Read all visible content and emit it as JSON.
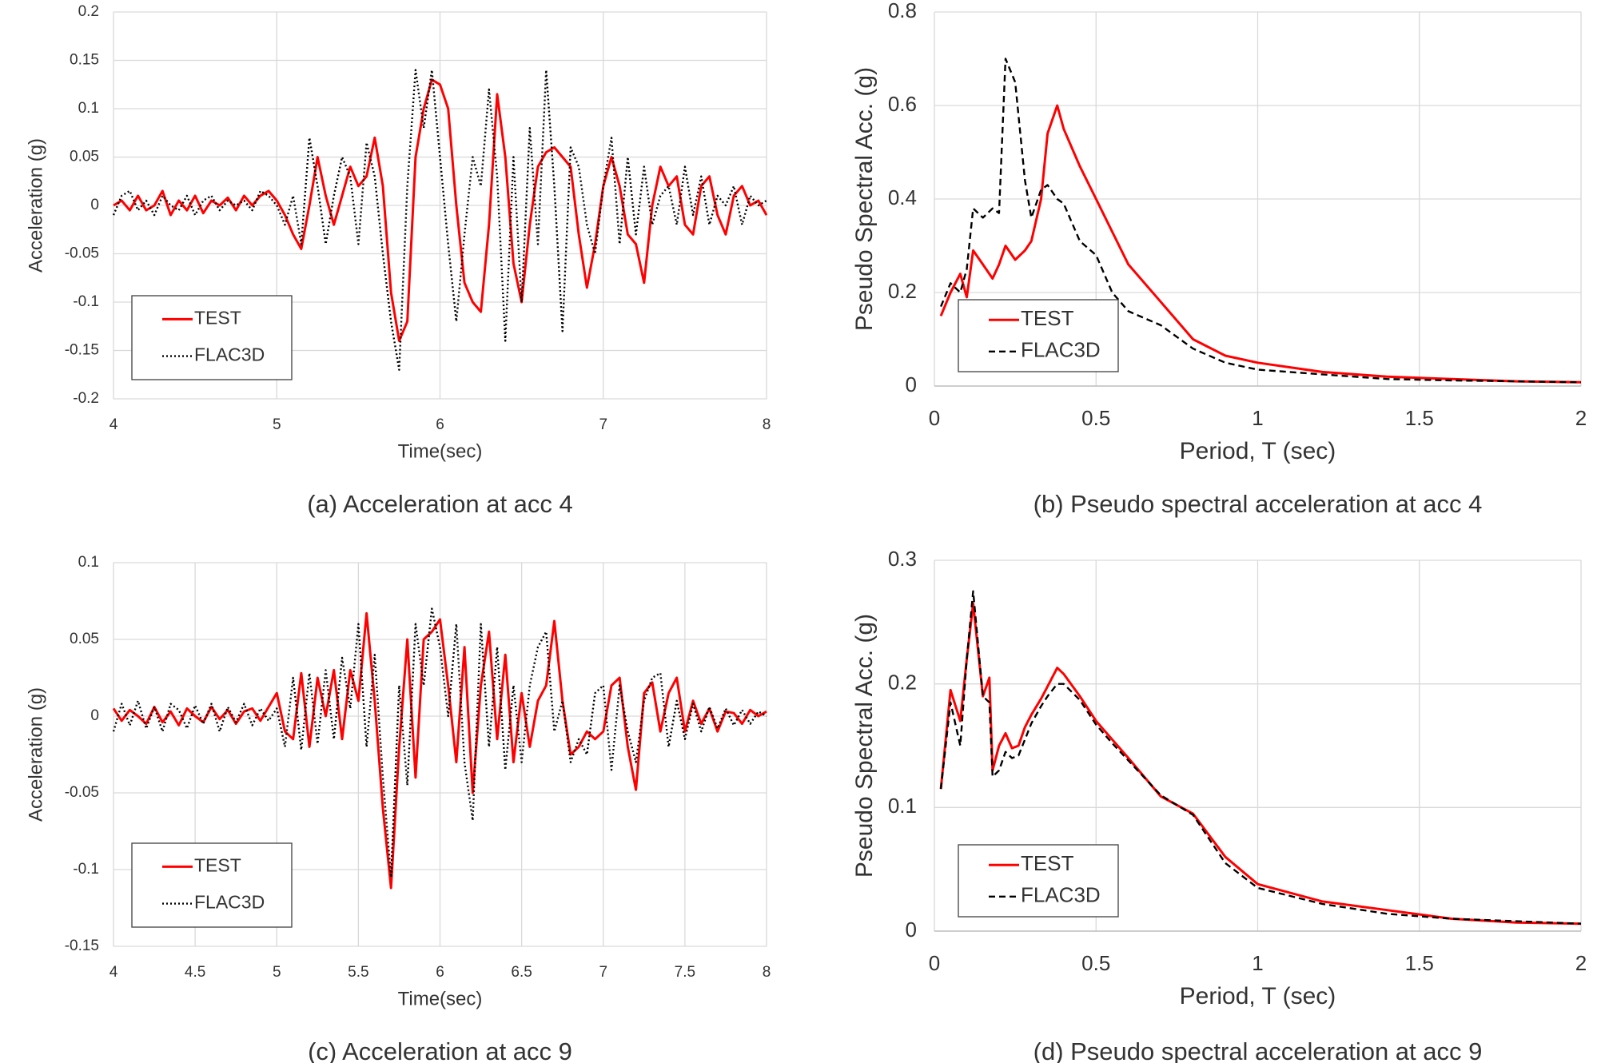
{
  "chart_data": [
    {
      "type": "line",
      "caption": "(a) Acceleration at acc 4",
      "x_label": "Time(sec)",
      "y_label": "Acceleration (g)",
      "xlim": [
        4,
        8
      ],
      "ylim": [
        -0.2,
        0.2
      ],
      "xticks": [
        4,
        5,
        6,
        7,
        8
      ],
      "yticks": [
        -0.2,
        -0.15,
        -0.1,
        -0.05,
        0,
        0.05,
        0.1,
        0.15,
        0.2
      ],
      "grid": true,
      "legend": "lower left",
      "x": [
        4,
        4.05,
        4.1,
        4.15,
        4.2,
        4.25,
        4.3,
        4.35,
        4.4,
        4.45,
        4.5,
        4.55,
        4.6,
        4.65,
        4.7,
        4.75,
        4.8,
        4.85,
        4.9,
        4.95,
        5,
        5.05,
        5.1,
        5.15,
        5.2,
        5.25,
        5.3,
        5.35,
        5.4,
        5.45,
        5.5,
        5.55,
        5.6,
        5.65,
        5.7,
        5.75,
        5.8,
        5.85,
        5.9,
        5.95,
        6,
        6.05,
        6.1,
        6.15,
        6.2,
        6.25,
        6.3,
        6.35,
        6.4,
        6.45,
        6.5,
        6.55,
        6.6,
        6.65,
        6.7,
        6.75,
        6.8,
        6.85,
        6.9,
        6.95,
        7,
        7.05,
        7.1,
        7.15,
        7.2,
        7.25,
        7.3,
        7.35,
        7.4,
        7.45,
        7.5,
        7.55,
        7.6,
        7.65,
        7.7,
        7.75,
        7.8,
        7.85,
        7.9,
        7.95,
        8
      ],
      "series": [
        {
          "name": "TEST",
          "color": "#ff0000",
          "line_style": "solid",
          "values": [
            0,
            0.005,
            -0.005,
            0.01,
            -0.005,
            0,
            0.015,
            -0.01,
            0.005,
            -0.005,
            0.01,
            -0.008,
            0.005,
            0,
            0.008,
            -0.005,
            0.01,
            0,
            0.01,
            0.015,
            0.005,
            -0.01,
            -0.03,
            -0.045,
            0,
            0.05,
            0.01,
            -0.02,
            0.01,
            0.04,
            0.02,
            0.03,
            0.07,
            0.02,
            -0.09,
            -0.14,
            -0.12,
            0.05,
            0.1,
            0.13,
            0.125,
            0.1,
            0,
            -0.08,
            -0.1,
            -0.11,
            -0.02,
            0.115,
            0.05,
            -0.06,
            -0.1,
            -0.02,
            0.04,
            0.055,
            0.06,
            0.05,
            0.04,
            -0.03,
            -0.085,
            -0.04,
            0.02,
            0.05,
            0.02,
            -0.03,
            -0.04,
            -0.08,
            0,
            0.04,
            0.02,
            0.03,
            -0.02,
            -0.03,
            0.02,
            0.03,
            -0.01,
            -0.03,
            0.01,
            0.02,
            0,
            0.005,
            -0.01
          ]
        },
        {
          "name": "FLAC3D",
          "color": "#000000",
          "line_style": "dotted",
          "values": [
            -0.01,
            0.01,
            0.015,
            -0.005,
            0.005,
            -0.01,
            0.01,
            0,
            -0.005,
            0.01,
            -0.01,
            0.005,
            0.01,
            -0.005,
            0.005,
            0,
            0.005,
            -0.005,
            0.015,
            0.01,
            0,
            -0.02,
            0.01,
            -0.04,
            0.07,
            0.02,
            -0.04,
            0.01,
            0.05,
            0.03,
            -0.04,
            0.065,
            0.03,
            -0.05,
            -0.12,
            -0.17,
            0.02,
            0.14,
            0.08,
            0.14,
            0.05,
            -0.04,
            -0.12,
            -0.03,
            0.05,
            0.02,
            0.12,
            0.03,
            -0.14,
            0.05,
            -0.1,
            0.08,
            -0.04,
            0.14,
            0.02,
            -0.13,
            0.06,
            0.04,
            -0.02,
            -0.05,
            0.02,
            0.07,
            -0.04,
            0.05,
            -0.03,
            0.04,
            -0.02,
            0.01,
            0.02,
            -0.02,
            0.04,
            -0.01,
            0.03,
            -0.02,
            0.01,
            0,
            0.02,
            -0.02,
            0.01,
            0,
            0.005
          ]
        }
      ]
    },
    {
      "type": "line",
      "caption": "(b) Pseudo spectral acceleration at acc 4",
      "x_label": "Period, T (sec)",
      "y_label": "Pseudo Spectral Acc. (g)",
      "xlim": [
        0,
        2
      ],
      "ylim": [
        0,
        0.8
      ],
      "xticks": [
        0,
        0.5,
        1,
        1.5,
        2
      ],
      "yticks": [
        0,
        0.2,
        0.4,
        0.6,
        0.8
      ],
      "grid": true,
      "legend": "lower left",
      "x": [
        0.02,
        0.05,
        0.08,
        0.1,
        0.12,
        0.15,
        0.18,
        0.2,
        0.22,
        0.25,
        0.28,
        0.3,
        0.33,
        0.35,
        0.38,
        0.4,
        0.45,
        0.5,
        0.55,
        0.6,
        0.7,
        0.8,
        0.9,
        1,
        1.2,
        1.4,
        1.6,
        1.8,
        2
      ],
      "series": [
        {
          "name": "TEST",
          "color": "#ff0000",
          "line_style": "solid",
          "values": [
            0.15,
            0.2,
            0.24,
            0.19,
            0.29,
            0.26,
            0.23,
            0.26,
            0.3,
            0.27,
            0.29,
            0.31,
            0.4,
            0.54,
            0.6,
            0.55,
            0.47,
            0.4,
            0.33,
            0.26,
            0.18,
            0.1,
            0.065,
            0.05,
            0.03,
            0.02,
            0.015,
            0.01,
            0.008
          ]
        },
        {
          "name": "FLAC3D",
          "color": "#000000",
          "line_style": "dashed",
          "values": [
            0.17,
            0.22,
            0.2,
            0.25,
            0.38,
            0.36,
            0.38,
            0.37,
            0.7,
            0.65,
            0.44,
            0.36,
            0.42,
            0.43,
            0.4,
            0.39,
            0.31,
            0.28,
            0.2,
            0.16,
            0.13,
            0.08,
            0.05,
            0.035,
            0.025,
            0.015,
            0.012,
            0.01,
            0.008
          ]
        }
      ]
    },
    {
      "type": "line",
      "caption": "(c) Acceleration at acc 9",
      "x_label": "Time(sec)",
      "y_label": "Acceleration (g)",
      "xlim": [
        4,
        8
      ],
      "ylim": [
        -0.15,
        0.1
      ],
      "xticks": [
        4,
        4.5,
        5,
        5.5,
        6,
        6.5,
        7,
        7.5,
        8
      ],
      "yticks": [
        -0.15,
        -0.1,
        -0.05,
        0,
        0.05,
        0.1
      ],
      "grid": true,
      "legend": "lower left",
      "x": [
        4,
        4.05,
        4.1,
        4.15,
        4.2,
        4.25,
        4.3,
        4.35,
        4.4,
        4.45,
        4.5,
        4.55,
        4.6,
        4.65,
        4.7,
        4.75,
        4.8,
        4.85,
        4.9,
        4.95,
        5,
        5.05,
        5.1,
        5.15,
        5.2,
        5.25,
        5.3,
        5.35,
        5.4,
        5.45,
        5.5,
        5.55,
        5.6,
        5.65,
        5.7,
        5.75,
        5.8,
        5.85,
        5.9,
        5.95,
        6,
        6.05,
        6.1,
        6.15,
        6.2,
        6.25,
        6.3,
        6.35,
        6.4,
        6.45,
        6.5,
        6.55,
        6.6,
        6.65,
        6.7,
        6.75,
        6.8,
        6.85,
        6.9,
        6.95,
        7,
        7.05,
        7.1,
        7.15,
        7.2,
        7.25,
        7.3,
        7.35,
        7.4,
        7.45,
        7.5,
        7.55,
        7.6,
        7.65,
        7.7,
        7.75,
        7.8,
        7.85,
        7.9,
        7.95,
        8
      ],
      "series": [
        {
          "name": "TEST",
          "color": "#ff0000",
          "line_style": "solid",
          "values": [
            0.005,
            -0.003,
            0.004,
            0,
            -0.005,
            0.006,
            -0.004,
            0.003,
            -0.006,
            0.005,
            0,
            -0.004,
            0.006,
            -0.002,
            0.004,
            -0.005,
            0.003,
            0.005,
            -0.003,
            0.006,
            0.015,
            -0.01,
            -0.015,
            0.028,
            -0.02,
            0.025,
            0,
            0.03,
            -0.015,
            0.03,
            0.01,
            0.067,
            0.01,
            -0.06,
            -0.112,
            -0.02,
            0.05,
            -0.04,
            0.05,
            0.055,
            0.063,
            0.02,
            -0.03,
            0.045,
            -0.05,
            0.02,
            0.055,
            -0.015,
            0.04,
            -0.03,
            0.015,
            -0.02,
            0.01,
            0.02,
            0.062,
            0.01,
            -0.025,
            -0.02,
            -0.01,
            -0.015,
            -0.01,
            0.02,
            0.025,
            -0.02,
            -0.048,
            0.015,
            0.022,
            -0.01,
            0.015,
            0.025,
            -0.01,
            0.01,
            -0.005,
            0.005,
            -0.01,
            0.003,
            0.002,
            -0.005,
            0.004,
            0,
            0.003
          ]
        },
        {
          "name": "FLAC3D",
          "color": "#000000",
          "line_style": "dotted",
          "values": [
            -0.01,
            0.008,
            -0.006,
            0.01,
            -0.008,
            0.006,
            -0.01,
            0.008,
            0.004,
            -0.008,
            0.007,
            -0.005,
            0.008,
            -0.01,
            0.006,
            -0.004,
            0.008,
            -0.006,
            0.005,
            -0.003,
            0.005,
            -0.02,
            0.025,
            -0.022,
            0.028,
            -0.018,
            0.03,
            -0.015,
            0.038,
            0.005,
            0.06,
            -0.02,
            0.04,
            -0.04,
            -0.105,
            0.02,
            -0.045,
            0.06,
            0.02,
            0.07,
            0.045,
            0,
            0.06,
            -0.03,
            -0.068,
            0.06,
            -0.02,
            0.045,
            -0.035,
            0.02,
            -0.03,
            0.02,
            0.045,
            0.055,
            -0.01,
            0.01,
            -0.03,
            -0.015,
            -0.025,
            0.015,
            0.02,
            -0.035,
            0.02,
            -0.01,
            -0.03,
            0.01,
            0.025,
            0.028,
            -0.02,
            0.01,
            -0.015,
            0.008,
            -0.01,
            0.006,
            -0.008,
            0.005,
            -0.006,
            0.004,
            -0.005,
            0.003,
            0
          ]
        }
      ]
    },
    {
      "type": "line",
      "caption": "(d) Pseudo spectral acceleration at acc 9",
      "x_label": "Period, T (sec)",
      "y_label": "Pseudo Spectral Acc. (g)",
      "xlim": [
        0,
        2
      ],
      "ylim": [
        0,
        0.3
      ],
      "xticks": [
        0,
        0.5,
        1,
        1.5,
        2
      ],
      "yticks": [
        0,
        0.1,
        0.2,
        0.3
      ],
      "grid": true,
      "legend": "lower left",
      "x": [
        0.02,
        0.05,
        0.08,
        0.1,
        0.12,
        0.15,
        0.17,
        0.18,
        0.2,
        0.22,
        0.24,
        0.26,
        0.28,
        0.3,
        0.33,
        0.35,
        0.38,
        0.4,
        0.45,
        0.5,
        0.55,
        0.6,
        0.7,
        0.8,
        0.9,
        1,
        1.2,
        1.4,
        1.6,
        1.8,
        2
      ],
      "series": [
        {
          "name": "TEST",
          "color": "#ff0000",
          "line_style": "solid",
          "values": [
            0.115,
            0.195,
            0.17,
            0.22,
            0.265,
            0.19,
            0.205,
            0.13,
            0.15,
            0.16,
            0.148,
            0.15,
            0.165,
            0.175,
            0.188,
            0.198,
            0.213,
            0.208,
            0.19,
            0.17,
            0.155,
            0.14,
            0.109,
            0.095,
            0.06,
            0.038,
            0.024,
            0.017,
            0.01,
            0.007,
            0.006
          ]
        },
        {
          "name": "FLAC3D",
          "color": "#000000",
          "line_style": "dashed",
          "values": [
            0.115,
            0.185,
            0.15,
            0.22,
            0.275,
            0.19,
            0.185,
            0.125,
            0.13,
            0.145,
            0.14,
            0.142,
            0.155,
            0.168,
            0.182,
            0.19,
            0.2,
            0.2,
            0.187,
            0.167,
            0.152,
            0.138,
            0.11,
            0.094,
            0.055,
            0.035,
            0.022,
            0.014,
            0.01,
            0.008,
            0.006
          ]
        }
      ]
    }
  ]
}
